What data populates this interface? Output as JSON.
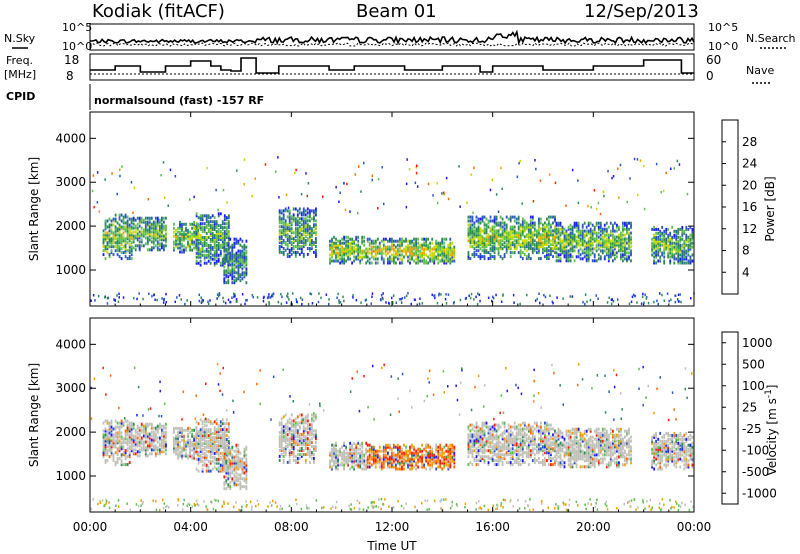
{
  "header": {
    "station": "Kodiak (fitACF)",
    "beam": "Beam 01",
    "date": "12/Sep/2013"
  },
  "summary_panels": {
    "nsky_label": "N.Sky",
    "nsearch_label": "N.Search",
    "noise_left_ticks": [
      "10^5",
      "10^0"
    ],
    "noise_right_ticks": [
      "10^5",
      "10^0"
    ],
    "freq_label": "Freq.",
    "freq_unit": "[MHz]",
    "freq_ticks": [
      "18",
      "8"
    ],
    "nave_label": "Nave",
    "nave_ticks": [
      "60",
      "0"
    ],
    "cpid_label": "CPID",
    "cpid_value": "normalsound (fast) -157 RF"
  },
  "colors": {
    "power_scale": [
      "#1a1aff",
      "#2c55c8",
      "#2e8b57",
      "#5fbf4f",
      "#c8d800",
      "#f0a000",
      "#ff6a00",
      "#ff1a00"
    ],
    "velocity_scale": [
      "#1a1aff",
      "#2c55c8",
      "#2e8b57",
      "#5fbf4f",
      "#c0c0b8",
      "#f0a000",
      "#ff6a00",
      "#ff1a00"
    ]
  },
  "chart_data": [
    {
      "type": "heatmap",
      "name": "power-panel",
      "ylabel": "Slant Range [km]",
      "ylim": [
        180,
        4600
      ],
      "yticks": [
        1000,
        2000,
        3000,
        4000
      ],
      "xlim_hours": [
        0,
        24
      ],
      "colorbar": {
        "label": "Power [dB]",
        "ticks": [
          "4",
          "8",
          "12",
          "16",
          "20",
          "24",
          "28"
        ],
        "range": [
          0,
          32
        ]
      },
      "echo_bands": [
        {
          "t0": 0.5,
          "t1": 1.7,
          "r0": 1250,
          "r1": 2250,
          "level": 0.5
        },
        {
          "t0": 1.7,
          "t1": 3.0,
          "r0": 1450,
          "r1": 2200,
          "level": 0.45
        },
        {
          "t0": 3.3,
          "t1": 4.3,
          "r0": 1400,
          "r1": 2100,
          "level": 0.5
        },
        {
          "t0": 4.2,
          "t1": 5.5,
          "r0": 1100,
          "r1": 2300,
          "level": 0.4
        },
        {
          "t0": 5.3,
          "t1": 6.2,
          "r0": 700,
          "r1": 1700,
          "level": 0.3
        },
        {
          "t0": 7.5,
          "t1": 9.0,
          "r0": 1300,
          "r1": 2400,
          "level": 0.4
        },
        {
          "t0": 9.5,
          "t1": 11.0,
          "r0": 1150,
          "r1": 1750,
          "level": 0.55
        },
        {
          "t0": 11.0,
          "t1": 14.5,
          "r0": 1150,
          "r1": 1700,
          "level": 0.6
        },
        {
          "t0": 15.0,
          "t1": 18.5,
          "r0": 1250,
          "r1": 2200,
          "level": 0.5
        },
        {
          "t0": 18.5,
          "t1": 21.5,
          "r0": 1200,
          "r1": 2100,
          "level": 0.45
        },
        {
          "t0": 22.3,
          "t1": 23.9,
          "r0": 1150,
          "r1": 2000,
          "level": 0.4
        }
      ]
    },
    {
      "type": "heatmap",
      "name": "velocity-panel",
      "ylabel": "Slant Range [km]",
      "ylim": [
        180,
        4600
      ],
      "yticks": [
        1000,
        2000,
        3000,
        4000
      ],
      "xlim_hours": [
        0,
        24
      ],
      "xticks": [
        "00:00",
        "04:00",
        "08:00",
        "12:00",
        "16:00",
        "20:00",
        "00:00"
      ],
      "xlabel": "Time UT",
      "colorbar": {
        "label": "Velocity [m s",
        "label_exp": "-1",
        "ticks": [
          "1000",
          "500",
          "100",
          "25",
          "-25",
          "-100",
          "-500",
          "-1000"
        ]
      },
      "echo_bands": [
        {
          "t0": 0.5,
          "t1": 1.7,
          "r0": 1250,
          "r1": 2250,
          "level": 0.5
        },
        {
          "t0": 1.7,
          "t1": 3.0,
          "r0": 1450,
          "r1": 2200,
          "level": 0.5
        },
        {
          "t0": 3.3,
          "t1": 4.3,
          "r0": 1400,
          "r1": 2100,
          "level": 0.5
        },
        {
          "t0": 4.2,
          "t1": 5.5,
          "r0": 1100,
          "r1": 2300,
          "level": 0.4
        },
        {
          "t0": 5.3,
          "t1": 6.2,
          "r0": 700,
          "r1": 1700,
          "level": 0.35
        },
        {
          "t0": 7.5,
          "t1": 9.0,
          "r0": 1300,
          "r1": 2400,
          "level": 0.45
        },
        {
          "t0": 9.5,
          "t1": 11.0,
          "r0": 1150,
          "r1": 1750,
          "level": 0.3
        },
        {
          "t0": 11.0,
          "t1": 14.5,
          "r0": 1150,
          "r1": 1700,
          "level": 0.7
        },
        {
          "t0": 15.0,
          "t1": 18.5,
          "r0": 1250,
          "r1": 2200,
          "level": 0.5
        },
        {
          "t0": 18.5,
          "t1": 21.5,
          "r0": 1200,
          "r1": 2100,
          "level": 0.5
        },
        {
          "t0": 22.3,
          "t1": 23.9,
          "r0": 1150,
          "r1": 2000,
          "level": 0.5
        }
      ]
    }
  ]
}
